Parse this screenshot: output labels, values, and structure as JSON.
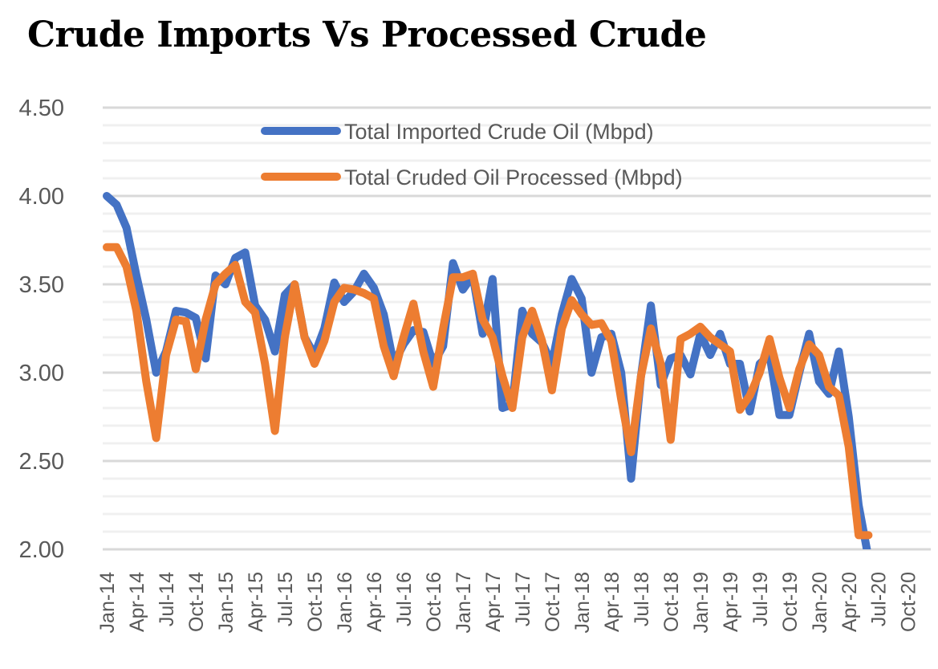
{
  "chart_data": {
    "type": "line",
    "title": "Crude Imports Vs Processed Crude",
    "xlabel": "",
    "ylabel": "",
    "ylim": [
      2.0,
      4.5
    ],
    "yticks": [
      "2.00",
      "2.50",
      "3.00",
      "3.50",
      "4.00",
      "4.50"
    ],
    "x_start": "Jan-14",
    "x_tick_labels": [
      "Jan-14",
      "Apr-14",
      "Jul-14",
      "Oct-14",
      "Jan-15",
      "Apr-15",
      "Jul-15",
      "Oct-15",
      "Jan-16",
      "Apr-16",
      "Jul-16",
      "Oct-16",
      "Jan-17",
      "Apr-17",
      "Jul-17",
      "Oct-17",
      "Jan-18",
      "Apr-18",
      "Jul-18",
      "Oct-18",
      "Jan-19",
      "Apr-19",
      "Jul-19",
      "Oct-19",
      "Jan-20",
      "Apr-20",
      "Jul-20",
      "Oct-20"
    ],
    "grid": true,
    "legend_position": "top-center",
    "series": [
      {
        "name": "Total Imported Crude Oil (Mbpd)",
        "color": "#4472C4",
        "values": [
          4.0,
          3.95,
          3.82,
          3.55,
          3.3,
          3.0,
          3.12,
          3.35,
          3.34,
          3.31,
          3.08,
          3.55,
          3.5,
          3.65,
          3.68,
          3.38,
          3.3,
          3.12,
          3.44,
          3.5,
          3.2,
          3.1,
          3.25,
          3.51,
          3.4,
          3.46,
          3.56,
          3.48,
          3.33,
          3.05,
          3.16,
          3.24,
          3.23,
          3.05,
          3.15,
          3.62,
          3.47,
          3.55,
          3.22,
          3.53,
          2.8,
          2.82,
          3.35,
          3.22,
          3.17,
          3.05,
          3.33,
          3.53,
          3.42,
          3.0,
          3.2,
          3.22,
          3.0,
          2.4,
          2.98,
          3.38,
          2.93,
          3.08,
          3.1,
          2.99,
          3.22,
          3.1,
          3.22,
          3.05,
          3.05,
          2.78,
          3.05,
          3.1,
          2.76,
          2.76,
          3.0,
          3.22,
          2.95,
          2.88,
          3.12,
          2.75,
          2.25,
          1.95
        ]
      },
      {
        "name": "Total Cruded Oil Processed (Mbpd)",
        "color": "#ED7D31",
        "values": [
          3.71,
          3.71,
          3.6,
          3.35,
          2.95,
          2.63,
          3.1,
          3.3,
          3.29,
          3.02,
          3.3,
          3.5,
          3.56,
          3.61,
          3.4,
          3.34,
          3.05,
          2.67,
          3.2,
          3.5,
          3.2,
          3.05,
          3.18,
          3.4,
          3.48,
          3.47,
          3.45,
          3.42,
          3.15,
          2.98,
          3.2,
          3.39,
          3.12,
          2.92,
          3.25,
          3.54,
          3.54,
          3.56,
          3.3,
          3.2,
          2.98,
          2.8,
          3.2,
          3.35,
          3.18,
          2.9,
          3.25,
          3.41,
          3.33,
          3.27,
          3.28,
          3.18,
          2.85,
          2.55,
          2.98,
          3.25,
          3.05,
          2.62,
          3.19,
          3.22,
          3.26,
          3.2,
          3.16,
          3.12,
          2.79,
          2.87,
          3.0,
          3.19,
          2.97,
          2.8,
          3.02,
          3.16,
          3.1,
          2.92,
          2.87,
          2.58,
          2.08,
          2.08
        ]
      }
    ]
  }
}
